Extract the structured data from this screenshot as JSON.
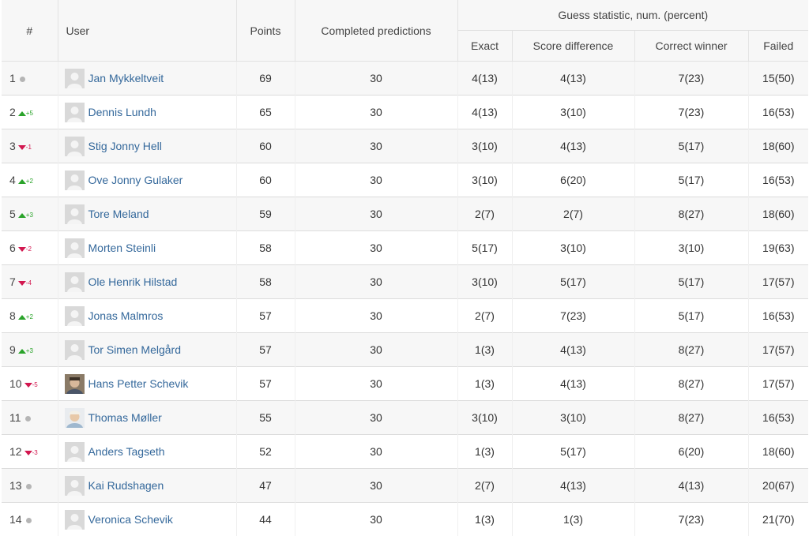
{
  "headers": {
    "rank": "#",
    "user": "User",
    "points": "Points",
    "completed": "Completed predictions",
    "group": "Guess statistic, num. (percent)",
    "exact": "Exact",
    "score_diff": "Score difference",
    "correct_winner": "Correct winner",
    "failed": "Failed"
  },
  "colors": {
    "up": "#2aa32a",
    "down": "#d2174f",
    "same": "#b5b5b5",
    "link": "#34689b"
  },
  "rows": [
    {
      "rank": "1",
      "trend": "same",
      "change": "",
      "user": "Jan Mykkeltveit",
      "avatar": "default-avatar-icon",
      "points": "69",
      "completed": "30",
      "exact": "4(13)",
      "score_diff": "4(13)",
      "correct_winner": "7(23)",
      "failed": "15(50)"
    },
    {
      "rank": "2",
      "trend": "up",
      "change": "+5",
      "user": "Dennis Lundh",
      "avatar": "default-avatar-icon",
      "points": "65",
      "completed": "30",
      "exact": "4(13)",
      "score_diff": "3(10)",
      "correct_winner": "7(23)",
      "failed": "16(53)"
    },
    {
      "rank": "3",
      "trend": "down",
      "change": "-1",
      "user": "Stig Jonny Hell",
      "avatar": "default-avatar-icon",
      "points": "60",
      "completed": "30",
      "exact": "3(10)",
      "score_diff": "4(13)",
      "correct_winner": "5(17)",
      "failed": "18(60)"
    },
    {
      "rank": "4",
      "trend": "up",
      "change": "+2",
      "user": "Ove Jonny Gulaker",
      "avatar": "default-avatar-icon",
      "points": "60",
      "completed": "30",
      "exact": "3(10)",
      "score_diff": "6(20)",
      "correct_winner": "5(17)",
      "failed": "16(53)"
    },
    {
      "rank": "5",
      "trend": "up",
      "change": "+3",
      "user": "Tore Meland",
      "avatar": "default-avatar-icon",
      "points": "59",
      "completed": "30",
      "exact": "2(7)",
      "score_diff": "2(7)",
      "correct_winner": "8(27)",
      "failed": "18(60)"
    },
    {
      "rank": "6",
      "trend": "down",
      "change": "-2",
      "user": "Morten Steinli",
      "avatar": "default-avatar-icon",
      "points": "58",
      "completed": "30",
      "exact": "5(17)",
      "score_diff": "3(10)",
      "correct_winner": "3(10)",
      "failed": "19(63)"
    },
    {
      "rank": "7",
      "trend": "down",
      "change": "-4",
      "user": "Ole Henrik Hilstad",
      "avatar": "default-avatar-icon",
      "points": "58",
      "completed": "30",
      "exact": "3(10)",
      "score_diff": "5(17)",
      "correct_winner": "5(17)",
      "failed": "17(57)"
    },
    {
      "rank": "8",
      "trend": "up",
      "change": "+2",
      "user": "Jonas Malmros",
      "avatar": "default-avatar-icon",
      "points": "57",
      "completed": "30",
      "exact": "2(7)",
      "score_diff": "7(23)",
      "correct_winner": "5(17)",
      "failed": "16(53)"
    },
    {
      "rank": "9",
      "trend": "up",
      "change": "+3",
      "user": "Tor Simen Melgård",
      "avatar": "default-avatar-icon",
      "points": "57",
      "completed": "30",
      "exact": "1(3)",
      "score_diff": "4(13)",
      "correct_winner": "8(27)",
      "failed": "17(57)"
    },
    {
      "rank": "10",
      "trend": "down",
      "change": "-5",
      "user": "Hans Petter Schevik",
      "avatar": "photo-avatar-icon",
      "points": "57",
      "completed": "30",
      "exact": "1(3)",
      "score_diff": "4(13)",
      "correct_winner": "8(27)",
      "failed": "17(57)"
    },
    {
      "rank": "11",
      "trend": "same",
      "change": "",
      "user": "Thomas Møller",
      "avatar": "photo-avatar-icon",
      "points": "55",
      "completed": "30",
      "exact": "3(10)",
      "score_diff": "3(10)",
      "correct_winner": "8(27)",
      "failed": "16(53)"
    },
    {
      "rank": "12",
      "trend": "down",
      "change": "-3",
      "user": "Anders Tagseth",
      "avatar": "default-avatar-icon",
      "points": "52",
      "completed": "30",
      "exact": "1(3)",
      "score_diff": "5(17)",
      "correct_winner": "6(20)",
      "failed": "18(60)"
    },
    {
      "rank": "13",
      "trend": "same",
      "change": "",
      "user": "Kai Rudshagen",
      "avatar": "default-avatar-icon",
      "points": "47",
      "completed": "30",
      "exact": "2(7)",
      "score_diff": "4(13)",
      "correct_winner": "4(13)",
      "failed": "20(67)"
    },
    {
      "rank": "14",
      "trend": "same",
      "change": "",
      "user": "Veronica Schevik",
      "avatar": "default-avatar-icon",
      "points": "44",
      "completed": "30",
      "exact": "1(3)",
      "score_diff": "1(3)",
      "correct_winner": "7(23)",
      "failed": "21(70)"
    }
  ]
}
